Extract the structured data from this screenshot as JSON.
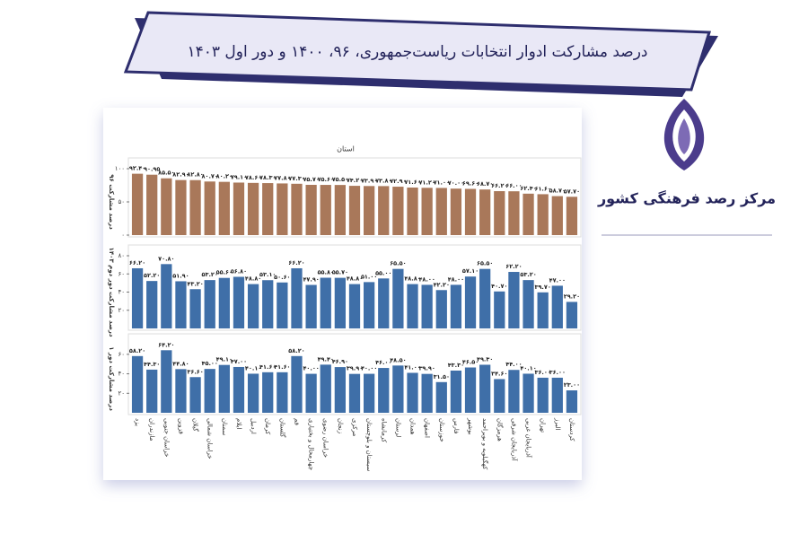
{
  "banner": {
    "title": "درصد مشارکت ادوار انتخابات ریاست‌جمهوری، ۹۶، ۱۴۰۰ و دور اول ۱۴۰۳"
  },
  "logo": {
    "text": "مرکز رصد فرهنگی کشور"
  },
  "chart_data": [
    {
      "type": "bar",
      "title": "استان",
      "ylabel": "درصد مشارکت ۹۶",
      "color": "#a9785a",
      "ylim": [
        0,
        100
      ],
      "yticks": [
        {
          "value": 0,
          "label": "۰"
        },
        {
          "value": 50,
          "label": "۵۰"
        },
        {
          "value": 100,
          "label": "۱۰۰"
        }
      ],
      "values": [
        92.4,
        90.95,
        85.5,
        82.9,
        82.8,
        80.7,
        80.2,
        79.1,
        78.6,
        78.3,
        77.8,
        77.3,
        75.7,
        75.6,
        75.5,
        74.2,
        73.9,
        73.8,
        72.9,
        71.6,
        71.2,
        71.0,
        70.0,
        69.6,
        68.7,
        66.2,
        66.0,
        62.4,
        61.6,
        58.7,
        57.7
      ],
      "value_labels": [
        "۹۲.۴۰",
        "۹۰.۹۵",
        "۸۵.۵۰",
        "۸۲.۹۰",
        "۸۲.۸۰",
        "۸۰.۷۰",
        "۸۰.۲۰",
        "۷۹.۱۰",
        "۷۸.۶۰",
        "۷۸.۳۰",
        "۷۷.۸۰",
        "۷۷.۳۰",
        "۷۵.۷۰",
        "۷۵.۶۰",
        "۷۵.۵۰",
        "۷۴.۲۰",
        "۷۳.۹۰",
        "۷۳.۸۰",
        "۷۲.۹۰",
        "۷۱.۶۰",
        "۷۱.۲۰",
        "۷۱.۰۰",
        "۷۰.۰۰",
        "۶۹.۶۰",
        "۶۸.۷۰",
        "۶۶.۲۰",
        "۶۶.۰۰",
        "۶۲.۴۰",
        "۶۱.۶۰",
        "۵۸.۷۰",
        "۵۷.۷۰"
      ]
    },
    {
      "type": "bar",
      "ylabel": "درصد مشارکت دور دوم ۱۴۰۳",
      "color": "#3f6fa8",
      "ylim": [
        0,
        80
      ],
      "yticks": [
        {
          "value": 20,
          "label": "۲۰"
        },
        {
          "value": 40,
          "label": "۴۰"
        },
        {
          "value": 60,
          "label": "۶۰"
        },
        {
          "value": 80,
          "label": "۸۰"
        }
      ],
      "values": [
        66.2,
        52.2,
        70.8,
        51.9,
        43.2,
        53.2,
        55.6,
        56.8,
        48.8,
        53.1,
        50.6,
        66.2,
        47.9,
        55.8,
        55.7,
        48.8,
        51.0,
        55.0,
        65.5,
        48.8,
        48.0,
        42.2,
        48.0,
        57.1,
        65.5,
        40.7,
        62.2,
        53.2,
        39.7,
        47.0,
        29.2
      ],
      "value_labels": [
        "۶۶.۲۰",
        "۵۲.۲۰",
        "۷۰.۸۰",
        "۵۱.۹۰",
        "۴۳.۲۰",
        "۵۳.۲۰",
        "۵۵.۶۰",
        "۵۶.۸۰",
        "۴۸.۸۰",
        "۵۳.۱۰",
        "۵۰.۶۰",
        "۶۶.۲۰",
        "۴۷.۹۰",
        "۵۵.۸۰",
        "۵۵.۷۰",
        "۴۸.۸۰",
        "۵۱.۰۰",
        "۵۵.۰۰",
        "۶۵.۵۰",
        "۴۸.۸۰",
        "۴۸.۰۰",
        "۴۲.۲۰",
        "۴۸.۰۰",
        "۵۷.۱۰",
        "۶۵.۵۰",
        "۴۰.۷۰",
        "۶۲.۲۰",
        "۵۳.۲۰",
        "۳۹.۷۰",
        "۴۷.۰۰",
        "۲۹.۲۰"
      ]
    },
    {
      "type": "bar",
      "ylabel": "درصد مشارکت دور ۱",
      "color": "#3f6fa8",
      "ylim": [
        0,
        70
      ],
      "yticks": [
        {
          "value": 20,
          "label": "۲۰"
        },
        {
          "value": 40,
          "label": "۴۰"
        },
        {
          "value": 60,
          "label": "۶۰"
        }
      ],
      "categories": [
        "یزد",
        "مازندران",
        "خراسان جنوبی",
        "قزوین",
        "گیلان",
        "خراسان شمالی",
        "سمنان",
        "ایلام",
        "اردبیل",
        "کرمان",
        "گلستان",
        "قم",
        "چهارمحال و بختیاری",
        "خراسان رضوی",
        "زنجان",
        "مرکزی",
        "سیستان و بلوچستان",
        "کرمانشاه",
        "لرستان",
        "همدان",
        "اصفهان",
        "خوزستان",
        "فارس",
        "بوشهر",
        "کهگیلویه و بویراحمد",
        "هرمزگان",
        "آذربایجان شرقی",
        "آذربایجان غربی",
        "تهران",
        "البرز",
        "کردستان"
      ],
      "values": [
        58.2,
        44.3,
        64.2,
        44.8,
        36.6,
        45.0,
        49.1,
        47.0,
        40.1,
        41.6,
        41.6,
        58.2,
        40.0,
        49.4,
        46.9,
        39.9,
        40.0,
        46.0,
        48.5,
        41.0,
        39.9,
        31.5,
        43.3,
        46.5,
        49.3,
        34.6,
        44.0,
        40.1,
        36.0,
        36.0,
        23.0
      ],
      "value_labels": [
        "۵۸.۲۰",
        "۴۴.۳۰",
        "۶۴.۲۰",
        "۴۴.۸۰",
        "۳۶.۶۰",
        "۴۵.۰۰",
        "۴۹.۱۰",
        "۴۷.۰۰",
        "۴۰.۱۰",
        "۴۱.۶۰",
        "۴۱.۶۰",
        "۵۸.۲۰",
        "۴۰.۰۰",
        "۴۹.۴۰",
        "۴۶.۹۰",
        "۳۹.۹۰",
        "۴۰.۰۰",
        "۴۶.۰۰",
        "۴۸.۵۰",
        "۴۱.۰۰",
        "۳۹.۹۰",
        "۳۱.۵۰",
        "۴۳.۳۰",
        "۴۶.۵۰",
        "۴۹.۳۰",
        "۳۴.۶۰",
        "۴۴.۰۰",
        "۴۰.۱۰",
        "۳۶.۰۰",
        "۳۶.۰۰",
        "۲۳.۰۰"
      ]
    }
  ]
}
